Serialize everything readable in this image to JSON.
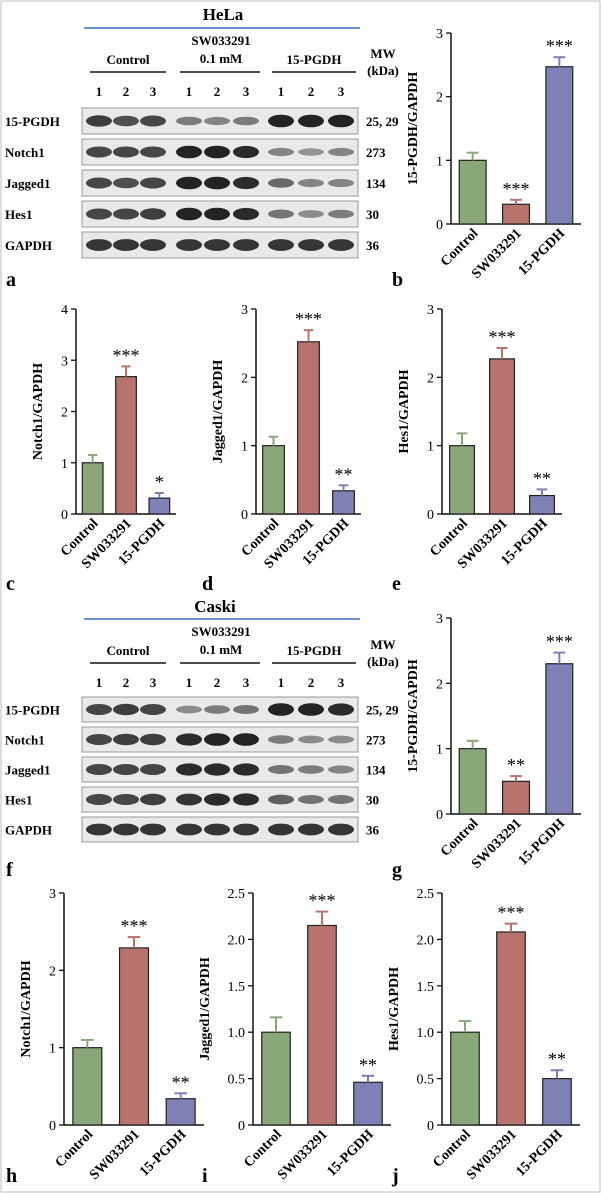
{
  "panel_letters": [
    "a",
    "b",
    "c",
    "d",
    "e",
    "f",
    "g",
    "h",
    "i",
    "j"
  ],
  "blots": [
    {
      "cell_line": "HeLa",
      "groups": [
        {
          "label": "Control",
          "label2": ""
        },
        {
          "label": "SW033291",
          "label2": "0.1 mM"
        },
        {
          "label": "15-PGDH",
          "label2": ""
        }
      ],
      "lanes": [
        "1",
        "2",
        "3",
        "1",
        "2",
        "3",
        "1",
        "2",
        "3"
      ],
      "mw_header": [
        "MW",
        "(kDa)"
      ],
      "rows": [
        {
          "name": "15-PGDH",
          "mw": "25, 29",
          "intensity": [
            0.8,
            0.7,
            0.75,
            0.45,
            0.4,
            0.45,
            0.95,
            0.95,
            0.95
          ]
        },
        {
          "name": "Notch1",
          "mw": "273",
          "intensity": [
            0.75,
            0.75,
            0.75,
            0.95,
            0.95,
            0.9,
            0.4,
            0.3,
            0.4
          ]
        },
        {
          "name": "Jagged1",
          "mw": "134",
          "intensity": [
            0.75,
            0.7,
            0.75,
            0.95,
            0.95,
            0.9,
            0.55,
            0.4,
            0.4
          ]
        },
        {
          "name": "Hes1",
          "mw": "30",
          "intensity": [
            0.75,
            0.75,
            0.8,
            0.95,
            0.95,
            0.9,
            0.5,
            0.35,
            0.45
          ]
        },
        {
          "name": "GAPDH",
          "mw": "36",
          "intensity": [
            0.85,
            0.85,
            0.85,
            0.85,
            0.85,
            0.85,
            0.85,
            0.85,
            0.85
          ]
        }
      ]
    },
    {
      "cell_line": "Caski",
      "groups": [
        {
          "label": "Control",
          "label2": ""
        },
        {
          "label": "SW033291",
          "label2": "0.1 mM"
        },
        {
          "label": "15-PGDH",
          "label2": ""
        }
      ],
      "lanes": [
        "1",
        "2",
        "3",
        "1",
        "2",
        "3",
        "1",
        "2",
        "3"
      ],
      "mw_header": [
        "MW",
        "(kDa)"
      ],
      "rows": [
        {
          "name": "15-PGDH",
          "mw": "25, 29",
          "intensity": [
            0.75,
            0.8,
            0.75,
            0.35,
            0.45,
            0.5,
            0.95,
            0.95,
            0.9
          ]
        },
        {
          "name": "Notch1",
          "mw": "273",
          "intensity": [
            0.75,
            0.8,
            0.8,
            0.9,
            0.95,
            0.95,
            0.45,
            0.35,
            0.35
          ]
        },
        {
          "name": "Jagged1",
          "mw": "134",
          "intensity": [
            0.75,
            0.75,
            0.75,
            0.9,
            0.9,
            0.9,
            0.5,
            0.45,
            0.4
          ]
        },
        {
          "name": "Hes1",
          "mw": "30",
          "intensity": [
            0.75,
            0.75,
            0.8,
            0.85,
            0.9,
            0.9,
            0.6,
            0.5,
            0.5
          ]
        },
        {
          "name": "GAPDH",
          "mw": "36",
          "intensity": [
            0.85,
            0.85,
            0.85,
            0.85,
            0.85,
            0.85,
            0.85,
            0.85,
            0.85
          ]
        }
      ]
    }
  ],
  "colors": {
    "Control": "#8aa779",
    "SW033291": "#b8746c",
    "15-PGDH": "#7e80b6",
    "blot_bg": "#e9e9e9",
    "band": "#1a1a1a",
    "cell_line_rule": "#6c8fd6"
  },
  "chart_data": [
    {
      "panel": "b",
      "type": "bar",
      "categories": [
        "Control",
        "SW033291",
        "15-PGDH"
      ],
      "values": [
        1.0,
        0.31,
        2.47
      ],
      "errors": [
        0.12,
        0.07,
        0.15
      ],
      "annotations": [
        "",
        "***",
        "***"
      ],
      "ylabel": "15-PGDH/GAPDH",
      "ylim": [
        0,
        3
      ],
      "yticks": [
        "0",
        "1",
        "2",
        "3"
      ]
    },
    {
      "panel": "c",
      "type": "bar",
      "categories": [
        "Control",
        "SW033291",
        "15-PGDH"
      ],
      "values": [
        1.0,
        2.68,
        0.31
      ],
      "errors": [
        0.15,
        0.2,
        0.1
      ],
      "annotations": [
        "",
        "***",
        "*"
      ],
      "ylabel": "Notch1/GAPDH",
      "ylim": [
        0,
        4
      ],
      "yticks": [
        "0",
        "1",
        "2",
        "3",
        "4"
      ]
    },
    {
      "panel": "d",
      "type": "bar",
      "categories": [
        "Control",
        "SW033291",
        "15-PGDH"
      ],
      "values": [
        1.0,
        2.52,
        0.34
      ],
      "errors": [
        0.13,
        0.17,
        0.08
      ],
      "annotations": [
        "",
        "***",
        "**"
      ],
      "ylabel": "Jagged1/GAPDH",
      "ylim": [
        0,
        3
      ],
      "yticks": [
        "0",
        "1",
        "2",
        "3"
      ]
    },
    {
      "panel": "e",
      "type": "bar",
      "categories": [
        "Control",
        "SW033291",
        "15-PGDH"
      ],
      "values": [
        1.0,
        2.27,
        0.27
      ],
      "errors": [
        0.18,
        0.16,
        0.09
      ],
      "annotations": [
        "",
        "***",
        "**"
      ],
      "ylabel": "Hes1/GAPDH",
      "ylim": [
        0,
        3
      ],
      "yticks": [
        "0",
        "1",
        "2",
        "3"
      ]
    },
    {
      "panel": "g",
      "type": "bar",
      "categories": [
        "Control",
        "SW033291",
        "15-PGDH"
      ],
      "values": [
        1.0,
        0.5,
        2.3
      ],
      "errors": [
        0.12,
        0.08,
        0.17
      ],
      "annotations": [
        "",
        "**",
        "***"
      ],
      "ylabel": "15-PGDH/GAPDH",
      "ylim": [
        0,
        3
      ],
      "yticks": [
        "0",
        "1",
        "2",
        "3"
      ]
    },
    {
      "panel": "h",
      "type": "bar",
      "categories": [
        "Control",
        "SW033291",
        "15-PGDH"
      ],
      "values": [
        1.0,
        2.29,
        0.34
      ],
      "errors": [
        0.1,
        0.14,
        0.07
      ],
      "annotations": [
        "",
        "***",
        "**"
      ],
      "ylabel": "Notch1/GAPDH",
      "ylim": [
        0,
        3
      ],
      "yticks": [
        "0",
        "1",
        "2",
        "3"
      ]
    },
    {
      "panel": "i",
      "type": "bar",
      "categories": [
        "Control",
        "SW033291",
        "15-PGDH"
      ],
      "values": [
        1.0,
        2.15,
        0.46
      ],
      "errors": [
        0.16,
        0.15,
        0.07
      ],
      "annotations": [
        "",
        "***",
        "**"
      ],
      "ylabel": "Jagged1/GAPDH",
      "ylim": [
        0,
        2.5
      ],
      "yticks": [
        "0",
        "0.5",
        "1.0",
        "1.5",
        "2.0",
        "2.5"
      ]
    },
    {
      "panel": "j",
      "type": "bar",
      "categories": [
        "Control",
        "SW033291",
        "15-PGDH"
      ],
      "values": [
        1.0,
        2.08,
        0.5
      ],
      "errors": [
        0.12,
        0.09,
        0.09
      ],
      "annotations": [
        "",
        "***",
        "**"
      ],
      "ylabel": "Hes1/GAPDH",
      "ylim": [
        0,
        2.5
      ],
      "yticks": [
        "0",
        "0.5",
        "1.0",
        "1.5",
        "2.0",
        "2.5"
      ]
    }
  ]
}
